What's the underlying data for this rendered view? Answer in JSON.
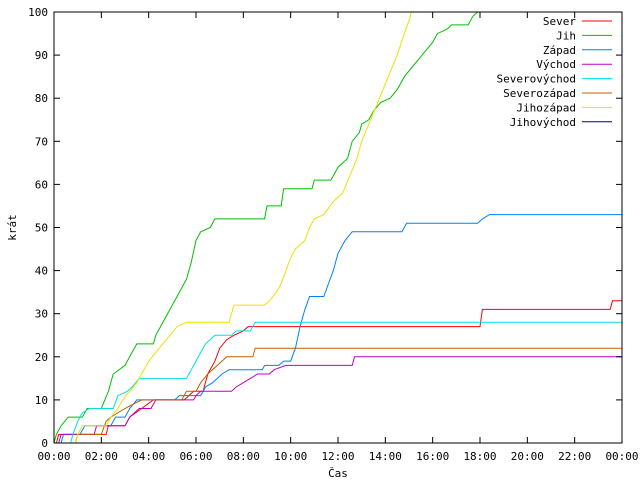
{
  "chart_data": {
    "type": "line",
    "xlabel": "Čas",
    "ylabel": "krát",
    "x_ticks": [
      "00:00",
      "02:00",
      "04:00",
      "06:00",
      "08:00",
      "10:00",
      "12:00",
      "14:00",
      "16:00",
      "18:00",
      "20:00",
      "22:00",
      "00:00"
    ],
    "x_unit": "hour",
    "xlim": [
      0,
      24
    ],
    "ylim": [
      0,
      100
    ],
    "y_ticks": [
      0,
      10,
      20,
      30,
      40,
      50,
      60,
      70,
      80,
      90,
      100
    ],
    "grid": false,
    "legend_position": "top-right",
    "series": [
      {
        "name": "Sever",
        "color": "#ff0000",
        "points": [
          [
            0.1,
            0
          ],
          [
            0.2,
            2
          ],
          [
            2.2,
            2
          ],
          [
            2.3,
            4
          ],
          [
            3.0,
            4
          ],
          [
            3.2,
            6
          ],
          [
            3.7,
            8
          ],
          [
            4.2,
            10
          ],
          [
            5.5,
            10
          ],
          [
            5.7,
            11
          ],
          [
            5.9,
            12
          ],
          [
            6.3,
            12
          ],
          [
            6.5,
            16
          ],
          [
            6.8,
            19
          ],
          [
            7.0,
            22
          ],
          [
            7.3,
            24
          ],
          [
            7.6,
            25
          ],
          [
            8.0,
            26
          ],
          [
            8.2,
            27
          ],
          [
            18.0,
            27
          ],
          [
            18.1,
            31
          ],
          [
            23.5,
            31
          ],
          [
            23.6,
            33
          ],
          [
            24,
            33
          ]
        ]
      },
      {
        "name": "Jih",
        "color": "#00c000",
        "points": [
          [
            0,
            0
          ],
          [
            0.1,
            2
          ],
          [
            0.3,
            4
          ],
          [
            0.6,
            6
          ],
          [
            1.2,
            6
          ],
          [
            1.4,
            8
          ],
          [
            2.0,
            8
          ],
          [
            2.3,
            12
          ],
          [
            2.5,
            16
          ],
          [
            3.0,
            18
          ],
          [
            3.2,
            20
          ],
          [
            3.5,
            23
          ],
          [
            4.2,
            23
          ],
          [
            4.3,
            25
          ],
          [
            4.5,
            27
          ],
          [
            4.7,
            29
          ],
          [
            4.9,
            31
          ],
          [
            5.1,
            33
          ],
          [
            5.3,
            35
          ],
          [
            5.6,
            38
          ],
          [
            5.8,
            42
          ],
          [
            6.0,
            47
          ],
          [
            6.2,
            49
          ],
          [
            6.6,
            50
          ],
          [
            6.8,
            52
          ],
          [
            8.9,
            52
          ],
          [
            9.0,
            55
          ],
          [
            9.6,
            55
          ],
          [
            9.7,
            59
          ],
          [
            10.9,
            59
          ],
          [
            11.0,
            61
          ],
          [
            11.7,
            61
          ],
          [
            11.8,
            62
          ],
          [
            12.0,
            64
          ],
          [
            12.4,
            66
          ],
          [
            12.6,
            70
          ],
          [
            12.9,
            72
          ],
          [
            13.0,
            74
          ],
          [
            13.3,
            75
          ],
          [
            13.5,
            77
          ],
          [
            13.8,
            79
          ],
          [
            14.2,
            80
          ],
          [
            14.5,
            82
          ],
          [
            14.8,
            85
          ],
          [
            15.1,
            87
          ],
          [
            15.4,
            89
          ],
          [
            15.7,
            91
          ],
          [
            16.0,
            93
          ],
          [
            16.2,
            95
          ],
          [
            16.6,
            96
          ],
          [
            16.8,
            97
          ],
          [
            17.5,
            97
          ],
          [
            17.7,
            99
          ],
          [
            17.9,
            100
          ]
        ]
      },
      {
        "name": "Západ",
        "color": "#0080ff",
        "points": [
          [
            0.3,
            0
          ],
          [
            0.4,
            2
          ],
          [
            1.1,
            2
          ],
          [
            1.3,
            4
          ],
          [
            2.4,
            4
          ],
          [
            2.6,
            6
          ],
          [
            3.0,
            6
          ],
          [
            3.2,
            8
          ],
          [
            3.5,
            10
          ],
          [
            5.1,
            10
          ],
          [
            5.3,
            11
          ],
          [
            6.2,
            11
          ],
          [
            6.4,
            13
          ],
          [
            6.7,
            14
          ],
          [
            6.9,
            15
          ],
          [
            7.1,
            16
          ],
          [
            7.4,
            17
          ],
          [
            8.8,
            17
          ],
          [
            8.9,
            18
          ],
          [
            9.5,
            18
          ],
          [
            9.7,
            19
          ],
          [
            10.0,
            19
          ],
          [
            10.2,
            22
          ],
          [
            10.4,
            27
          ],
          [
            10.6,
            31
          ],
          [
            10.8,
            34
          ],
          [
            11.4,
            34
          ],
          [
            11.6,
            37
          ],
          [
            11.8,
            40
          ],
          [
            12.0,
            44
          ],
          [
            12.3,
            47
          ],
          [
            12.6,
            49
          ],
          [
            14.7,
            49
          ],
          [
            14.9,
            51
          ],
          [
            17.9,
            51
          ],
          [
            18.1,
            52
          ],
          [
            18.4,
            53
          ],
          [
            24,
            53
          ]
        ]
      },
      {
        "name": "Východ",
        "color": "#c000c0",
        "points": [
          [
            0.2,
            0
          ],
          [
            0.3,
            2
          ],
          [
            1.7,
            2
          ],
          [
            1.8,
            4
          ],
          [
            3.0,
            4
          ],
          [
            3.2,
            6
          ],
          [
            3.4,
            7
          ],
          [
            3.6,
            8
          ],
          [
            4.1,
            8
          ],
          [
            4.3,
            10
          ],
          [
            5.9,
            10
          ],
          [
            6.0,
            11
          ],
          [
            6.2,
            12
          ],
          [
            7.5,
            12
          ],
          [
            7.7,
            13
          ],
          [
            8.0,
            14
          ],
          [
            8.3,
            15
          ],
          [
            8.6,
            16
          ],
          [
            9.1,
            16
          ],
          [
            9.3,
            17
          ],
          [
            9.8,
            18
          ],
          [
            12.6,
            18
          ],
          [
            12.7,
            20
          ],
          [
            24,
            20
          ]
        ]
      },
      {
        "name": "Severovýchod",
        "color": "#00e0e0",
        "points": [
          [
            0.7,
            0
          ],
          [
            0.8,
            2
          ],
          [
            1.0,
            5
          ],
          [
            1.2,
            7
          ],
          [
            1.5,
            8
          ],
          [
            2.5,
            8
          ],
          [
            2.7,
            11
          ],
          [
            3.1,
            12
          ],
          [
            3.3,
            13
          ],
          [
            3.6,
            15
          ],
          [
            5.6,
            15
          ],
          [
            5.8,
            17
          ],
          [
            6.0,
            19
          ],
          [
            6.2,
            21
          ],
          [
            6.4,
            23
          ],
          [
            6.6,
            24
          ],
          [
            6.8,
            25
          ],
          [
            7.5,
            25
          ],
          [
            7.7,
            26
          ],
          [
            8.3,
            26
          ],
          [
            8.5,
            28
          ],
          [
            24,
            28
          ]
        ]
      },
      {
        "name": "Severozápad",
        "color": "#c06000",
        "points": [
          [
            0.9,
            0
          ],
          [
            1.0,
            2
          ],
          [
            2.0,
            2
          ],
          [
            2.2,
            5
          ],
          [
            2.4,
            6
          ],
          [
            3.0,
            8
          ],
          [
            3.7,
            10
          ],
          [
            5.4,
            10
          ],
          [
            5.6,
            12
          ],
          [
            6.0,
            12
          ],
          [
            6.2,
            14
          ],
          [
            6.5,
            16
          ],
          [
            7.3,
            20
          ],
          [
            8.4,
            20
          ],
          [
            8.5,
            22
          ],
          [
            24,
            22
          ]
        ]
      },
      {
        "name": "Jihozápad",
        "color": "#f0e000",
        "points": [
          [
            0.9,
            0
          ],
          [
            1.0,
            2
          ],
          [
            1.2,
            4
          ],
          [
            2.2,
            4
          ],
          [
            2.4,
            6
          ],
          [
            2.7,
            8
          ],
          [
            2.9,
            10
          ],
          [
            3.2,
            12
          ],
          [
            3.5,
            14
          ],
          [
            3.8,
            17
          ],
          [
            4.0,
            19
          ],
          [
            4.3,
            21
          ],
          [
            4.6,
            23
          ],
          [
            4.9,
            25
          ],
          [
            5.2,
            27
          ],
          [
            5.6,
            28
          ],
          [
            7.4,
            28
          ],
          [
            7.6,
            32
          ],
          [
            8.9,
            32
          ],
          [
            9.1,
            33
          ],
          [
            9.4,
            35
          ],
          [
            9.6,
            37
          ],
          [
            9.8,
            40
          ],
          [
            10.0,
            43
          ],
          [
            10.2,
            45
          ],
          [
            10.6,
            47
          ],
          [
            10.8,
            50
          ],
          [
            11.0,
            52
          ],
          [
            11.4,
            53
          ],
          [
            11.8,
            56
          ],
          [
            12.2,
            58
          ],
          [
            12.5,
            62
          ],
          [
            12.8,
            66
          ],
          [
            13.0,
            70
          ],
          [
            13.3,
            74
          ],
          [
            13.6,
            78
          ],
          [
            13.9,
            82
          ],
          [
            14.2,
            86
          ],
          [
            14.5,
            90
          ],
          [
            14.8,
            95
          ],
          [
            15.0,
            98
          ],
          [
            15.1,
            100
          ]
        ]
      },
      {
        "name": "Jihovýchod",
        "color": "#000080",
        "points": []
      }
    ]
  }
}
